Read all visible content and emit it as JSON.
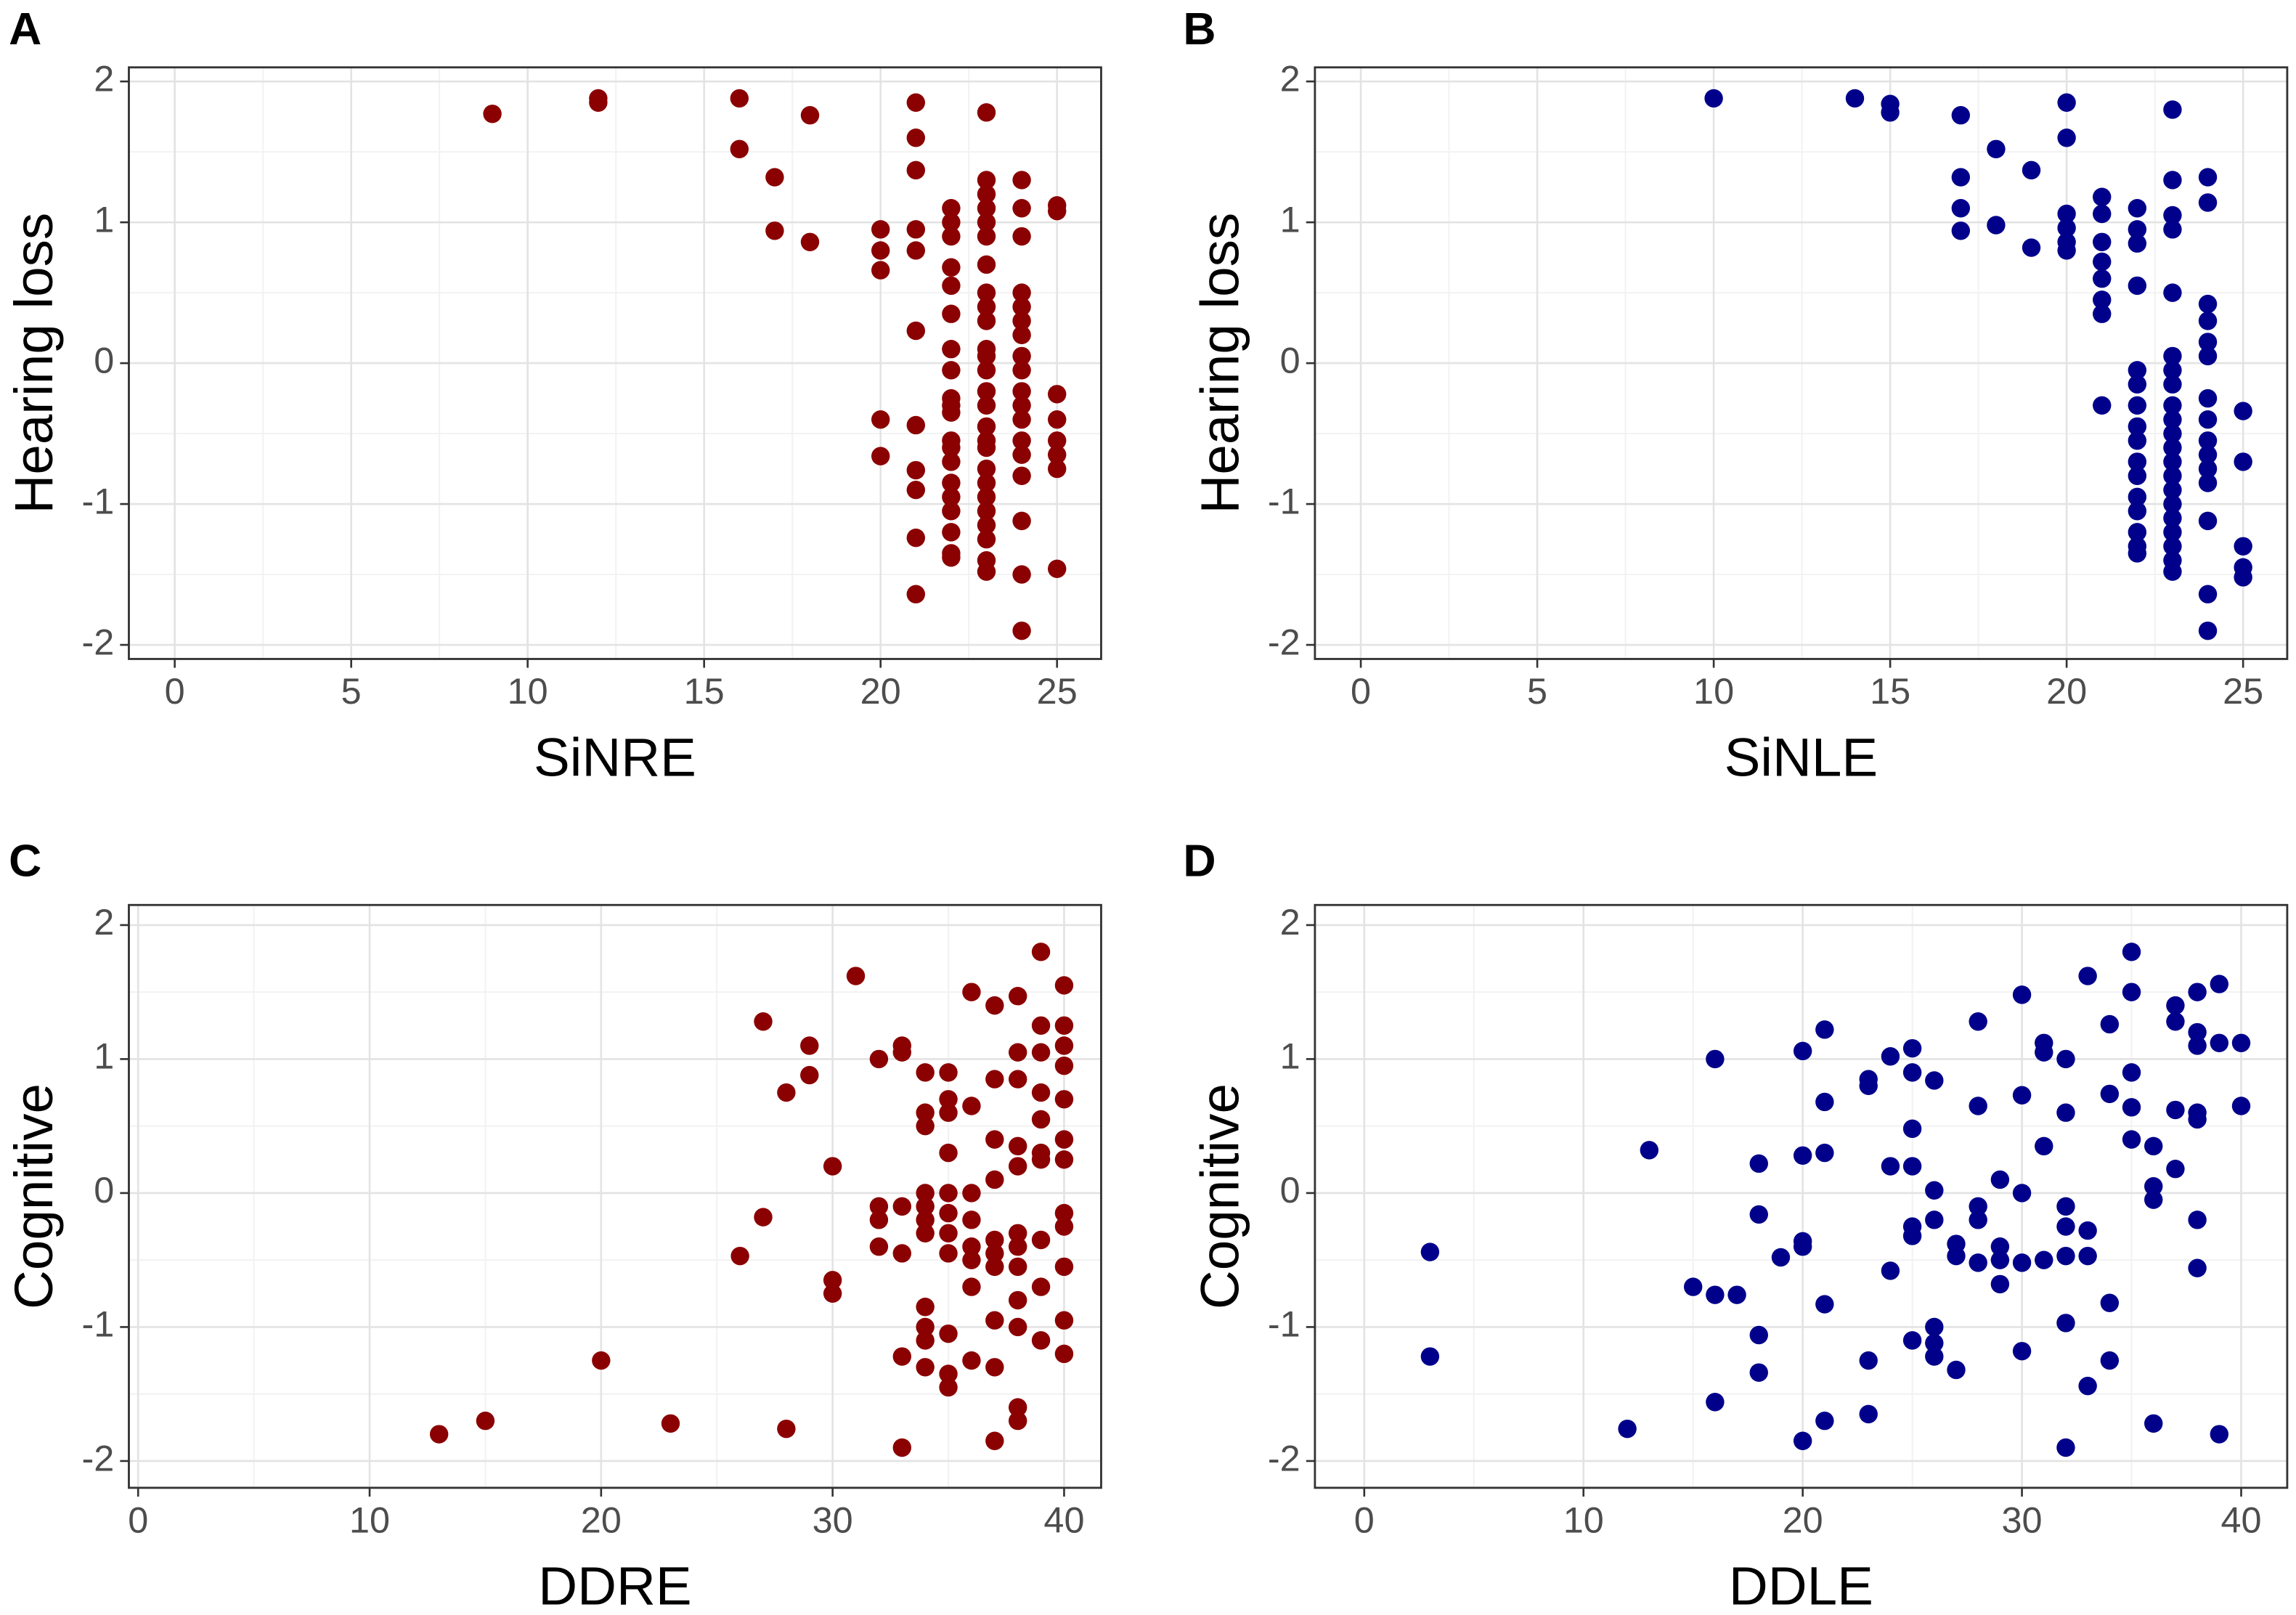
{
  "chart_data": [
    {
      "type": "scatter",
      "label": "A",
      "xlabel": "SiNRE",
      "ylabel": "Hearing loss",
      "color": "#8b0000",
      "xlim": [
        -1.3,
        26.25
      ],
      "ylim": [
        -2.1,
        2.1
      ],
      "xticks": [
        0,
        5,
        10,
        15,
        20,
        25
      ],
      "yticks": [
        -2,
        -1,
        0,
        1,
        2
      ],
      "grid": true,
      "x": [
        9,
        12,
        12,
        16,
        16,
        17,
        17,
        18,
        18,
        20,
        20,
        20,
        20,
        20,
        21,
        21,
        21,
        21,
        21,
        21,
        21,
        21,
        21,
        21,
        21,
        22,
        22,
        22,
        22,
        22,
        22,
        22,
        22,
        22,
        22,
        22,
        22,
        22,
        22,
        22,
        22,
        22,
        22,
        22,
        22,
        23,
        23,
        23,
        23,
        23,
        23,
        23,
        23,
        23,
        23,
        23,
        23,
        23,
        23,
        23,
        23,
        23,
        23,
        23,
        23,
        23,
        23,
        23,
        23,
        23,
        23,
        24,
        24,
        24,
        24,
        24,
        24,
        24,
        24,
        24,
        24,
        24,
        24,
        24,
        24,
        24,
        24,
        24,
        24,
        25,
        25,
        25,
        25,
        25,
        25,
        25,
        25
      ],
      "y": [
        1.77,
        1.85,
        1.88,
        1.88,
        1.52,
        1.32,
        0.94,
        1.76,
        0.86,
        0.95,
        0.8,
        0.66,
        -0.4,
        -0.66,
        1.85,
        1.6,
        1.37,
        0.95,
        0.8,
        0.23,
        -0.44,
        -0.76,
        -0.9,
        -1.24,
        -1.64,
        1.1,
        1.0,
        0.9,
        0.68,
        0.55,
        0.35,
        0.1,
        -0.05,
        -0.25,
        -0.3,
        -0.35,
        -0.55,
        -0.6,
        -0.7,
        -0.85,
        -0.95,
        -1.05,
        -1.2,
        -1.35,
        -1.38,
        1.78,
        1.3,
        1.2,
        1.1,
        1.0,
        0.9,
        0.7,
        0.5,
        0.4,
        0.3,
        0.1,
        0.05,
        -0.05,
        -0.2,
        -0.3,
        -0.45,
        -0.55,
        -0.6,
        -0.75,
        -0.85,
        -0.95,
        -1.05,
        -1.15,
        -1.25,
        -1.4,
        -1.48,
        1.3,
        1.1,
        0.9,
        0.5,
        0.4,
        0.3,
        0.2,
        0.05,
        -0.05,
        -0.2,
        -0.3,
        -0.4,
        -0.55,
        -0.65,
        -0.8,
        -1.12,
        -1.5,
        -1.9,
        1.12,
        1.08,
        -0.22,
        -0.4,
        -0.55,
        -0.65,
        -0.75,
        -1.46
      ]
    },
    {
      "type": "scatter",
      "label": "B",
      "xlabel": "SiNLE",
      "ylabel": "Hearing loss",
      "color": "#00008b",
      "xlim": [
        -1.3,
        26.25
      ],
      "ylim": [
        -2.1,
        2.1
      ],
      "xticks": [
        0,
        5,
        10,
        15,
        20,
        25
      ],
      "yticks": [
        -2,
        -1,
        0,
        1,
        2
      ],
      "grid": true,
      "x": [
        10,
        14,
        15,
        15,
        17,
        17,
        17,
        17,
        18,
        18,
        19,
        19,
        20,
        20,
        20,
        20,
        20,
        20,
        21,
        21,
        21,
        21,
        21,
        21,
        21,
        21,
        22,
        22,
        22,
        22,
        22,
        22,
        22,
        22,
        22,
        22,
        22,
        22,
        22,
        22,
        22,
        22,
        23,
        23,
        23,
        23,
        23,
        23,
        23,
        23,
        23,
        23,
        23,
        23,
        23,
        23,
        23,
        23,
        23,
        23,
        23,
        23,
        23,
        24,
        24,
        24,
        24,
        24,
        24,
        24,
        24,
        24,
        24,
        24,
        24,
        24,
        24,
        24,
        25,
        25,
        25,
        25,
        25
      ],
      "y": [
        1.88,
        1.88,
        1.84,
        1.78,
        1.76,
        1.32,
        1.1,
        0.94,
        1.52,
        0.98,
        1.37,
        0.82,
        1.85,
        1.6,
        1.06,
        0.96,
        0.86,
        0.8,
        1.18,
        1.06,
        0.86,
        0.72,
        0.6,
        0.45,
        0.35,
        -0.3,
        1.1,
        0.95,
        0.85,
        0.55,
        -0.05,
        -0.15,
        -0.3,
        -0.45,
        -0.55,
        -0.7,
        -0.8,
        -0.95,
        -1.05,
        -1.2,
        -1.3,
        -1.35,
        1.8,
        1.3,
        1.05,
        0.95,
        0.5,
        0.05,
        -0.05,
        -0.15,
        -0.3,
        -0.4,
        -0.5,
        -0.6,
        -0.7,
        -0.8,
        -0.9,
        -1.0,
        -1.1,
        -1.2,
        -1.3,
        -1.4,
        -1.48,
        1.32,
        1.14,
        0.42,
        0.3,
        0.15,
        0.05,
        -0.25,
        -0.4,
        -0.55,
        -0.65,
        -0.75,
        -0.85,
        -1.12,
        -1.64,
        -1.9,
        -0.34,
        -0.7,
        -1.3,
        -1.45,
        -1.52
      ]
    },
    {
      "type": "scatter",
      "label": "C",
      "xlabel": "DDRE",
      "ylabel": "Cognitive",
      "color": "#8b0000",
      "xlim": [
        -0.4,
        41.6
      ],
      "ylim": [
        -2.2,
        2.15
      ],
      "xticks": [
        0,
        10,
        20,
        30,
        40
      ],
      "yticks": [
        -2,
        -1,
        0,
        1,
        2
      ],
      "grid": true,
      "x": [
        13,
        15,
        20,
        23,
        26,
        27,
        27,
        28,
        28,
        29,
        29,
        30,
        30,
        30,
        31,
        32,
        32,
        32,
        32,
        33,
        33,
        33,
        33,
        33,
        33,
        34,
        34,
        34,
        34,
        34,
        34,
        34,
        34,
        34,
        34,
        34,
        35,
        35,
        35,
        35,
        35,
        35,
        35,
        35,
        35,
        35,
        35,
        36,
        36,
        36,
        36,
        36,
        36,
        36,
        36,
        37,
        37,
        37,
        37,
        37,
        37,
        37,
        37,
        37,
        37,
        38,
        38,
        38,
        38,
        38,
        38,
        38,
        38,
        38,
        38,
        38,
        38,
        39,
        39,
        39,
        39,
        39,
        39,
        39,
        39,
        39,
        39,
        40,
        40,
        40,
        40,
        40,
        40,
        40,
        40,
        40,
        40,
        40,
        40
      ],
      "y": [
        -1.8,
        -1.7,
        -1.25,
        -1.72,
        -0.47,
        1.28,
        -0.18,
        0.75,
        -1.76,
        1.1,
        0.88,
        0.2,
        -0.65,
        -0.75,
        1.62,
        1.0,
        -0.1,
        -0.2,
        -0.4,
        1.1,
        1.05,
        -0.1,
        -0.45,
        -1.22,
        -1.9,
        0.9,
        0.6,
        0.5,
        0.0,
        -0.1,
        -0.2,
        -0.3,
        -0.85,
        -1.0,
        -1.1,
        -1.3,
        0.9,
        0.7,
        0.6,
        0.3,
        0.0,
        -0.15,
        -0.3,
        -0.45,
        -1.05,
        -1.35,
        -1.45,
        1.5,
        0.65,
        0.0,
        -0.2,
        -0.4,
        -0.5,
        -0.7,
        -1.25,
        1.4,
        0.85,
        0.4,
        0.1,
        -0.35,
        -0.45,
        -0.55,
        -0.95,
        -1.3,
        -1.85,
        1.47,
        1.05,
        0.85,
        0.35,
        0.2,
        -0.3,
        -0.4,
        -0.55,
        -0.8,
        -1.0,
        -1.6,
        -1.7,
        1.8,
        1.25,
        1.05,
        0.75,
        0.55,
        0.3,
        0.25,
        -0.35,
        -0.7,
        -1.1,
        1.55,
        1.25,
        1.1,
        0.95,
        0.7,
        0.4,
        0.25,
        -0.15,
        -0.25,
        -0.55,
        -0.95,
        -1.2
      ]
    },
    {
      "type": "scatter",
      "label": "D",
      "xlabel": "DDLE",
      "ylabel": "Cognitive",
      "color": "#00008b",
      "xlim": [
        -2.25,
        42.1
      ],
      "ylim": [
        -2.2,
        2.15
      ],
      "xticks": [
        0,
        10,
        20,
        30,
        40
      ],
      "yticks": [
        -2,
        -1,
        0,
        1,
        2
      ],
      "grid": true,
      "x": [
        3,
        3,
        12,
        13,
        15,
        16,
        16,
        16,
        17,
        18,
        18,
        18,
        18,
        19,
        20,
        20,
        20,
        20,
        20,
        21,
        21,
        21,
        21,
        21,
        23,
        23,
        23,
        23,
        24,
        24,
        24,
        25,
        25,
        25,
        25,
        25,
        25,
        25,
        26,
        26,
        26,
        26,
        26,
        26,
        27,
        27,
        27,
        28,
        28,
        28,
        28,
        28,
        29,
        29,
        29,
        29,
        30,
        30,
        30,
        30,
        30,
        31,
        31,
        31,
        31,
        32,
        32,
        32,
        32,
        32,
        32,
        32,
        33,
        33,
        33,
        33,
        34,
        34,
        34,
        34,
        35,
        35,
        35,
        35,
        35,
        36,
        36,
        36,
        36,
        37,
        37,
        37,
        37,
        38,
        38,
        38,
        38,
        38,
        38,
        38,
        39,
        39,
        39,
        40,
        40
      ],
      "y": [
        -0.44,
        -1.22,
        -1.76,
        0.32,
        -0.7,
        1.0,
        -0.76,
        -1.56,
        -0.76,
        0.22,
        -0.16,
        -1.06,
        -1.34,
        -0.48,
        1.06,
        0.28,
        -0.36,
        -0.4,
        -1.85,
        1.22,
        0.68,
        0.3,
        -0.83,
        -1.7,
        0.85,
        0.8,
        -1.25,
        -1.65,
        1.02,
        0.2,
        -0.58,
        1.08,
        0.9,
        0.48,
        0.2,
        -0.25,
        -0.32,
        -1.1,
        0.84,
        0.02,
        -0.2,
        -1.0,
        -1.12,
        -1.22,
        -0.38,
        -0.47,
        -1.32,
        1.28,
        0.65,
        -0.1,
        -0.2,
        -0.52,
        0.1,
        -0.4,
        -0.5,
        -0.68,
        1.48,
        0.73,
        0.0,
        -0.52,
        -1.18,
        1.12,
        1.05,
        0.35,
        -0.5,
        1.0,
        0.6,
        -0.1,
        -0.25,
        -0.47,
        -0.97,
        -1.9,
        1.62,
        -0.28,
        -0.47,
        -1.44,
        1.26,
        0.74,
        -0.82,
        -1.25,
        1.8,
        1.5,
        0.9,
        0.64,
        0.4,
        0.35,
        0.05,
        -0.05,
        -1.72,
        1.4,
        1.28,
        0.62,
        0.18,
        1.5,
        1.2,
        1.1,
        0.6,
        0.55,
        -0.2,
        -0.56,
        1.56,
        1.12,
        -1.8,
        1.12,
        0.65
      ]
    }
  ]
}
